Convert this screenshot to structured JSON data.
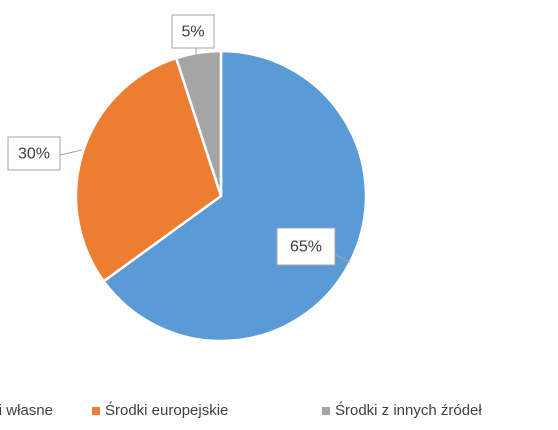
{
  "chart_data": {
    "type": "pie",
    "categories": [
      "Środki własne",
      "Środki europejskie",
      "Środki z innych źródeł"
    ],
    "values": [
      65,
      30,
      5
    ],
    "value_labels": [
      "65%",
      "30%",
      "5%"
    ],
    "colors": [
      "#5b9bd5",
      "#ed7d31",
      "#a5a5a5"
    ],
    "legend": "bottom"
  }
}
